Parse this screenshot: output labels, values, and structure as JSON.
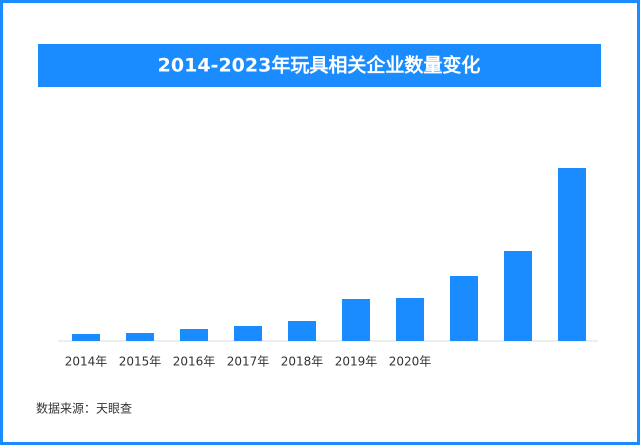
{
  "chart_data": {
    "type": "bar",
    "title": "2014-2023年玩具相关企业数量变化",
    "categories": [
      "2014年",
      "2015年",
      "2016年",
      "2017年",
      "2018年",
      "2019年",
      "2020年",
      null,
      null,
      null
    ],
    "values": [
      7,
      8,
      12,
      15,
      20,
      42,
      43,
      65,
      90,
      173
    ],
    "color": "#1a8cff",
    "source": "数据来源：天眼查"
  }
}
